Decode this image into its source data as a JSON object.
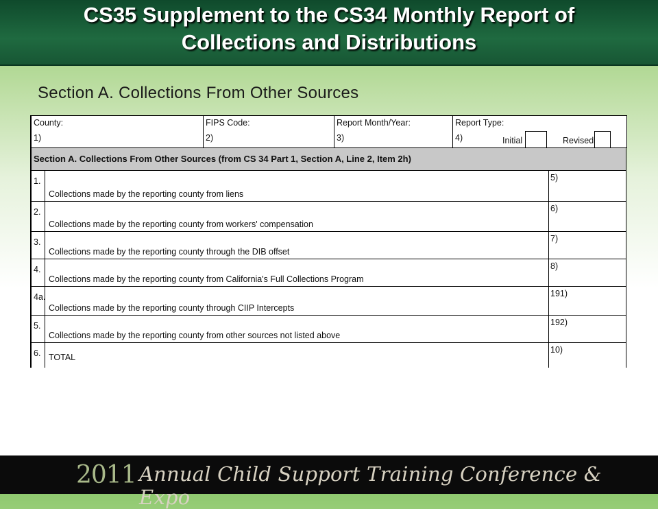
{
  "slide": {
    "title_line1": "CS35 Supplement to the CS34 Monthly Report of",
    "title_line2": "Collections and Distributions",
    "section_heading": "Section A.  Collections From Other Sources"
  },
  "form": {
    "header": {
      "county_label": "County:",
      "county_num": "1)",
      "fips_label": "FIPS Code:",
      "fips_num": "2)",
      "report_month_label": "Report Month/Year:",
      "report_month_num": "3)",
      "report_type_label": "Report Type:",
      "report_type_num": "4)",
      "initial_label": "Initial",
      "revised_label": "Revised"
    },
    "section_bar": "Section A.     Collections From Other Sources     (from CS 34 Part 1, Section A, Line 2,  Item 2h)",
    "lines": [
      {
        "no": "1.",
        "desc": "Collections made by the reporting county from liens",
        "item": "5)"
      },
      {
        "no": "2.",
        "desc": "Collections made by the reporting county from workers' compensation",
        "item": "6)"
      },
      {
        "no": "3.",
        "desc": "Collections made by the reporting county through the DIB offset",
        "item": "7)"
      },
      {
        "no": "4.",
        "desc": "Collections made by the reporting county from California's Full Collections Program",
        "item": "8)"
      },
      {
        "no": "4a.",
        "desc": "Collections made by the reporting county through CIIP Intercepts",
        "item": "191)"
      },
      {
        "no": "5.",
        "desc": "Collections made by the reporting county from other sources not listed above",
        "item": "192)"
      },
      {
        "no": "6.",
        "desc": "TOTAL",
        "item": "10)"
      }
    ]
  },
  "footer": {
    "year": "2011",
    "tagline": "Annual Child Support Training Conference & Expo"
  }
}
